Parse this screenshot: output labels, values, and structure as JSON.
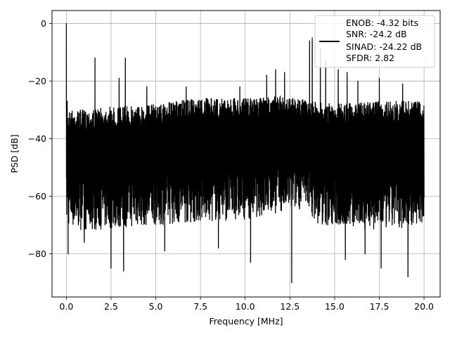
{
  "chart_data": {
    "type": "line",
    "xlabel": "Frequency [MHz]",
    "ylabel": "PSD [dB]",
    "xlim": [
      -0.8,
      20.9
    ],
    "ylim": [
      -95,
      4.5
    ],
    "x_ticks": [
      0.0,
      2.5,
      5.0,
      7.5,
      10.0,
      12.5,
      15.0,
      17.5,
      20.0
    ],
    "x_tick_labels": [
      "0.0",
      "2.5",
      "5.0",
      "7.5",
      "10.0",
      "12.5",
      "15.0",
      "17.5",
      "20.0"
    ],
    "y_ticks": [
      0,
      -20,
      -40,
      -60,
      -80
    ],
    "y_tick_labels": [
      "0",
      "−20",
      "−40",
      "−60",
      "−80"
    ],
    "grid": true,
    "legend_position": "top-right",
    "legend_lines": [
      "ENOB: -4.32 bits",
      "SNR: -24.2 dB",
      "SINAD: -24.22 dB",
      "SFDR: 2.82"
    ],
    "series_color": "#000000",
    "x_range": [
      0,
      20
    ],
    "upper_envelope": [
      [
        0,
        -30
      ],
      [
        1,
        -30
      ],
      [
        2.5,
        -29
      ],
      [
        5,
        -28
      ],
      [
        7.5,
        -26
      ],
      [
        10,
        -26
      ],
      [
        12.5,
        -25
      ],
      [
        13.5,
        -27
      ],
      [
        15,
        -28
      ],
      [
        17.5,
        -27
      ],
      [
        20,
        -27
      ]
    ],
    "lower_envelope": [
      [
        0,
        -70
      ],
      [
        1,
        -72
      ],
      [
        5,
        -70
      ],
      [
        10,
        -68
      ],
      [
        13.5,
        -64
      ],
      [
        14,
        -70
      ],
      [
        17.5,
        -72
      ],
      [
        20,
        -70
      ]
    ],
    "peaks": [
      {
        "x": 0.0,
        "y": 0
      },
      {
        "x": 0.05,
        "y": -27
      },
      {
        "x": 1.6,
        "y": -12
      },
      {
        "x": 2.95,
        "y": -19
      },
      {
        "x": 3.3,
        "y": -12
      },
      {
        "x": 4.5,
        "y": -22
      },
      {
        "x": 6.7,
        "y": -22
      },
      {
        "x": 9.7,
        "y": -22
      },
      {
        "x": 11.2,
        "y": -18
      },
      {
        "x": 11.7,
        "y": -16
      },
      {
        "x": 12.2,
        "y": -17
      },
      {
        "x": 13.6,
        "y": -6
      },
      {
        "x": 13.75,
        "y": -5
      },
      {
        "x": 14.2,
        "y": -9
      },
      {
        "x": 14.5,
        "y": -13
      },
      {
        "x": 15.2,
        "y": -16
      },
      {
        "x": 15.7,
        "y": -17
      },
      {
        "x": 16.3,
        "y": -20
      },
      {
        "x": 17.5,
        "y": -19
      },
      {
        "x": 18.8,
        "y": -21
      }
    ],
    "troughs": [
      {
        "x": 0.1,
        "y": -80
      },
      {
        "x": 1.0,
        "y": -76
      },
      {
        "x": 2.5,
        "y": -85
      },
      {
        "x": 3.2,
        "y": -86
      },
      {
        "x": 5.5,
        "y": -79
      },
      {
        "x": 8.5,
        "y": -78
      },
      {
        "x": 10.3,
        "y": -83
      },
      {
        "x": 12.6,
        "y": -90
      },
      {
        "x": 15.6,
        "y": -82
      },
      {
        "x": 16.7,
        "y": -80
      },
      {
        "x": 17.6,
        "y": -85
      },
      {
        "x": 19.1,
        "y": -88
      }
    ]
  }
}
